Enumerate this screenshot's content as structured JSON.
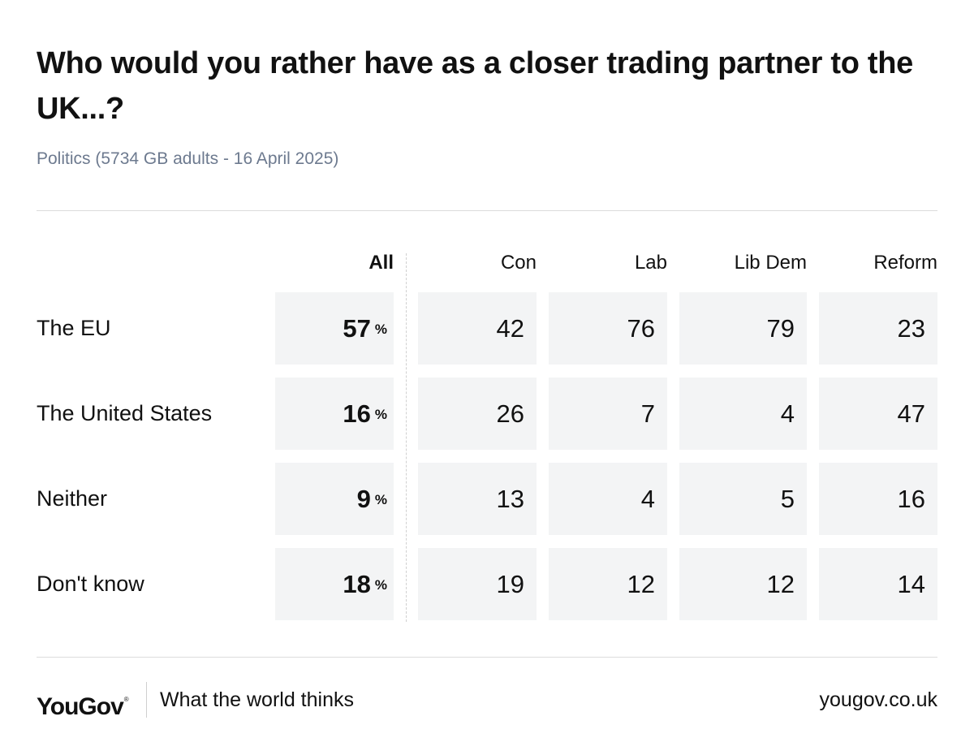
{
  "title": "Who would you rather have as a closer trading partner to the UK...?",
  "subtitle": "Politics (5734 GB adults - 16 April 2025)",
  "footer": {
    "logo": "YouGov",
    "tagline": "What the world thinks",
    "url": "yougov.co.uk"
  },
  "chart_data": {
    "type": "table",
    "title": "Who would you rather have as a closer trading partner to the UK...?",
    "subtitle": "Politics (5734 GB adults - 16 April 2025)",
    "columns": [
      "All",
      "Con",
      "Lab",
      "Lib Dem",
      "Reform"
    ],
    "rows": [
      "The EU",
      "The United States",
      "Neither",
      "Don't know"
    ],
    "all_unit": "%",
    "values": [
      [
        57,
        42,
        76,
        79,
        23
      ],
      [
        16,
        26,
        7,
        4,
        47
      ],
      [
        9,
        13,
        4,
        5,
        16
      ],
      [
        18,
        19,
        12,
        12,
        14
      ]
    ]
  }
}
